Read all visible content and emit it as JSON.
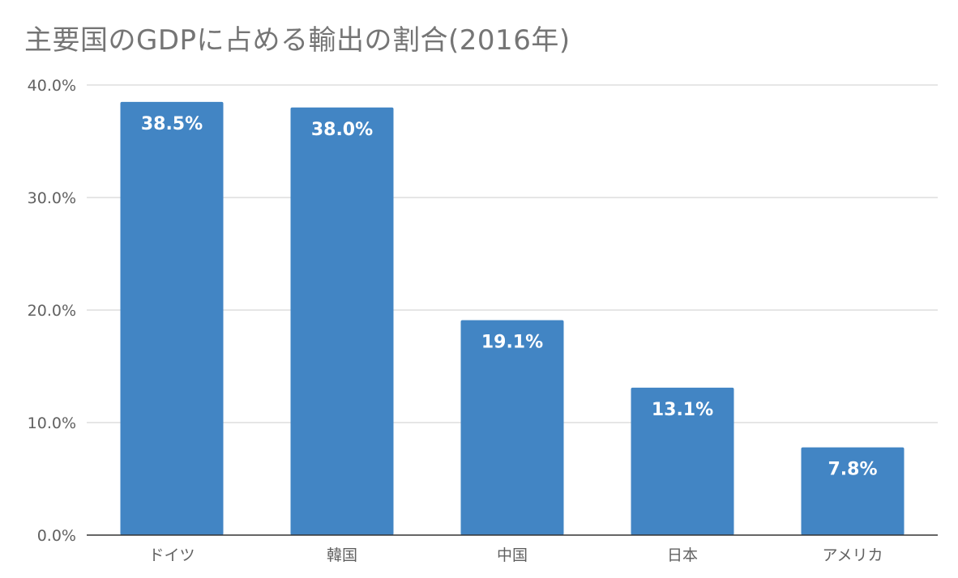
{
  "chart_data": {
    "type": "bar",
    "title": "主要国のGDPに占める輸出の割合(2016年)",
    "xlabel": "",
    "ylabel": "",
    "categories": [
      "ドイツ",
      "韓国",
      "中国",
      "日本",
      "アメリカ"
    ],
    "values": [
      38.5,
      38.0,
      19.1,
      13.1,
      7.8
    ],
    "data_labels": [
      "38.5%",
      "38.0%",
      "19.1%",
      "13.1%",
      "7.8%"
    ],
    "ylim": [
      0,
      40
    ],
    "yticks": [
      0,
      10,
      20,
      30,
      40
    ],
    "ytick_labels": [
      "0.0%",
      "10.0%",
      "20.0%",
      "30.0%",
      "40.0%"
    ],
    "grid": true,
    "legend": "none",
    "bar_color": "#4285c4"
  }
}
